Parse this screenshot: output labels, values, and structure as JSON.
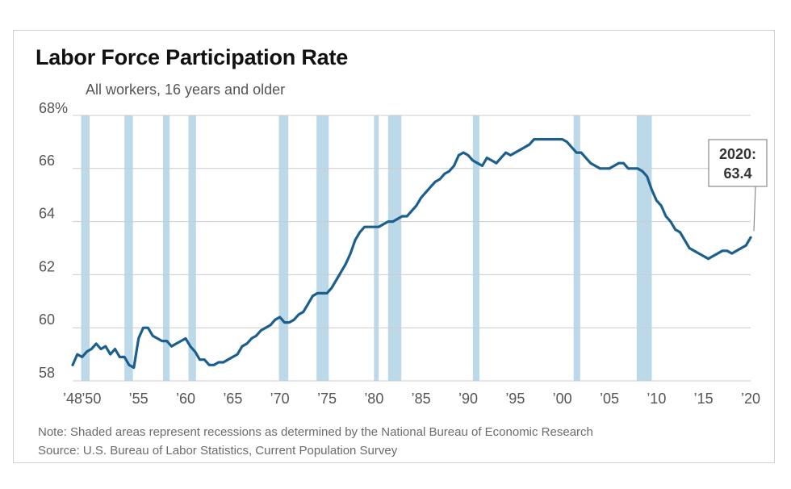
{
  "chart_data": {
    "type": "line",
    "title": "Labor Force Participation Rate",
    "subtitle": "All workers, 16 years and older",
    "ylim": [
      58,
      68
    ],
    "xlim": [
      1948,
      2020
    ],
    "y_ticks": [
      {
        "value": 68,
        "label": "68%"
      },
      {
        "value": 66,
        "label": "66"
      },
      {
        "value": 64,
        "label": "64"
      },
      {
        "value": 62,
        "label": "62"
      },
      {
        "value": 60,
        "label": "60"
      },
      {
        "value": 58,
        "label": "58"
      }
    ],
    "x_ticks": [
      {
        "value": 1948,
        "label": "’48"
      },
      {
        "value": 1950,
        "label": "’50"
      },
      {
        "value": 1955,
        "label": "’55"
      },
      {
        "value": 1960,
        "label": "’60"
      },
      {
        "value": 1965,
        "label": "’65"
      },
      {
        "value": 1970,
        "label": "’70"
      },
      {
        "value": 1975,
        "label": "’75"
      },
      {
        "value": 1980,
        "label": "’80"
      },
      {
        "value": 1985,
        "label": "’85"
      },
      {
        "value": 1990,
        "label": "’90"
      },
      {
        "value": 1995,
        "label": "’95"
      },
      {
        "value": 2000,
        "label": "’00"
      },
      {
        "value": 2005,
        "label": "’05"
      },
      {
        "value": 2010,
        "label": "’10"
      },
      {
        "value": 2015,
        "label": "’15"
      },
      {
        "value": 2020,
        "label": "’20"
      }
    ],
    "grid": "horizontal",
    "series": [
      {
        "color": "#1c5f8c",
        "x": [
          1948,
          1948.5,
          1949,
          1949.5,
          1950,
          1950.5,
          1951,
          1951.5,
          1952,
          1952.5,
          1953,
          1953.5,
          1954,
          1954.5,
          1955,
          1955.5,
          1956,
          1956.5,
          1957,
          1957.5,
          1958,
          1958.5,
          1959,
          1959.5,
          1960,
          1960.5,
          1961,
          1961.5,
          1962,
          1962.5,
          1963,
          1963.5,
          1964,
          1964.5,
          1965,
          1965.5,
          1966,
          1966.5,
          1967,
          1967.5,
          1968,
          1968.5,
          1969,
          1969.5,
          1970,
          1970.5,
          1971,
          1971.5,
          1972,
          1972.5,
          1973,
          1973.5,
          1974,
          1974.5,
          1975,
          1975.5,
          1976,
          1976.5,
          1977,
          1977.5,
          1978,
          1978.5,
          1979,
          1979.5,
          1980,
          1980.5,
          1981,
          1981.5,
          1982,
          1982.5,
          1983,
          1983.5,
          1984,
          1984.5,
          1985,
          1985.5,
          1986,
          1986.5,
          1987,
          1987.5,
          1988,
          1988.5,
          1989,
          1989.5,
          1990,
          1990.5,
          1991,
          1991.5,
          1992,
          1992.5,
          1993,
          1993.5,
          1994,
          1994.5,
          1995,
          1995.5,
          1996,
          1996.5,
          1997,
          1997.5,
          1998,
          1998.5,
          1999,
          1999.5,
          2000,
          2000.5,
          2001,
          2001.5,
          2002,
          2002.5,
          2003,
          2003.5,
          2004,
          2004.5,
          2005,
          2005.5,
          2006,
          2006.5,
          2007,
          2007.5,
          2008,
          2008.5,
          2009,
          2009.5,
          2010,
          2010.5,
          2011,
          2011.5,
          2012,
          2012.5,
          2013,
          2013.5,
          2014,
          2014.5,
          2015,
          2015.5,
          2016,
          2016.5,
          2017,
          2017.5,
          2018,
          2018.5,
          2019,
          2019.5,
          2020
        ],
        "values": [
          58.6,
          59.0,
          58.9,
          59.1,
          59.2,
          59.4,
          59.2,
          59.3,
          59.0,
          59.2,
          58.9,
          58.9,
          58.6,
          58.5,
          59.6,
          60.0,
          60.0,
          59.7,
          59.6,
          59.5,
          59.5,
          59.3,
          59.4,
          59.5,
          59.6,
          59.3,
          59.1,
          58.8,
          58.8,
          58.6,
          58.6,
          58.7,
          58.7,
          58.8,
          58.9,
          59.0,
          59.3,
          59.4,
          59.6,
          59.7,
          59.9,
          60.0,
          60.1,
          60.3,
          60.4,
          60.2,
          60.2,
          60.3,
          60.5,
          60.6,
          60.9,
          61.2,
          61.3,
          61.3,
          61.3,
          61.5,
          61.8,
          62.1,
          62.4,
          62.8,
          63.3,
          63.6,
          63.8,
          63.8,
          63.8,
          63.8,
          63.9,
          64.0,
          64.0,
          64.1,
          64.2,
          64.2,
          64.4,
          64.6,
          64.9,
          65.1,
          65.3,
          65.5,
          65.6,
          65.8,
          65.9,
          66.1,
          66.5,
          66.6,
          66.5,
          66.3,
          66.2,
          66.1,
          66.4,
          66.3,
          66.2,
          66.4,
          66.6,
          66.5,
          66.6,
          66.7,
          66.8,
          66.9,
          67.1,
          67.1,
          67.1,
          67.1,
          67.1,
          67.1,
          67.1,
          67.0,
          66.8,
          66.6,
          66.6,
          66.4,
          66.2,
          66.1,
          66.0,
          66.0,
          66.0,
          66.1,
          66.2,
          66.2,
          66.0,
          66.0,
          66.0,
          65.9,
          65.7,
          65.2,
          64.8,
          64.6,
          64.2,
          64.0,
          63.7,
          63.6,
          63.3,
          63.0,
          62.9,
          62.8,
          62.7,
          62.6,
          62.7,
          62.8,
          62.9,
          62.9,
          62.8,
          62.9,
          63.0,
          63.1,
          63.4
        ]
      }
    ],
    "recessions": [
      [
        1948.9,
        1949.8
      ],
      [
        1953.5,
        1954.4
      ],
      [
        1957.6,
        1958.3
      ],
      [
        1960.3,
        1961.1
      ],
      [
        1969.9,
        1970.9
      ],
      [
        1973.9,
        1975.2
      ],
      [
        1980.0,
        1980.5
      ],
      [
        1981.5,
        1982.9
      ],
      [
        1990.5,
        1991.2
      ],
      [
        2001.2,
        2001.9
      ],
      [
        2007.9,
        2009.5
      ]
    ],
    "annotation": {
      "x": 2020,
      "y": 63.4,
      "line1": "2020:",
      "line2": "63.4"
    },
    "notes": [
      "Note: Shaded areas represent recessions as determined by the National Bureau of Economic Research",
      "Source: U.S. Bureau of Labor Statistics, Current Population Survey"
    ],
    "colors": {
      "line": "#1c5f8c",
      "recession": "#bcd9ea",
      "grid": "#cccccc",
      "axis_text": "#555555"
    }
  }
}
